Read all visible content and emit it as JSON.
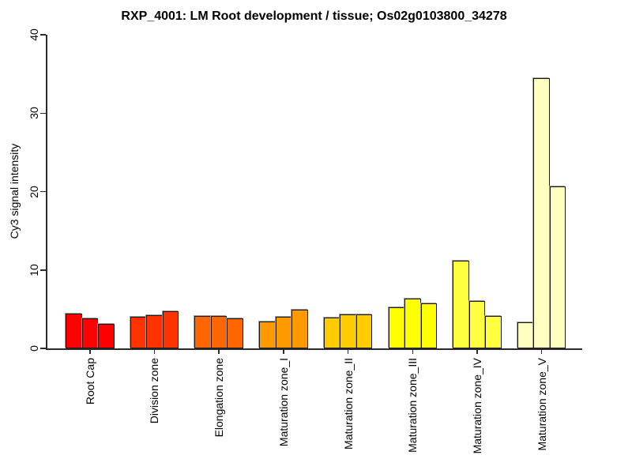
{
  "title": "RXP_4001: LM Root development / tissue; Os02g0103800_34278",
  "chart_data": {
    "type": "bar",
    "title": "RXP_4001: LM Root development / tissue; Os02g0103800_34278",
    "xlabel": "",
    "ylabel": "Cy3 signal intensity",
    "ylim": [
      0,
      40
    ],
    "yticks": [
      0,
      10,
      20,
      30,
      40
    ],
    "grid": false,
    "legend_position": "none",
    "bars_per_category": 3,
    "categories": [
      "Root Cap",
      "Division zone",
      "Elongation zone",
      "Maturation zone_I",
      "Maturation zone_II",
      "Maturation zone_III",
      "Maturation zone_IV",
      "Maturation zone_V"
    ],
    "values": [
      [
        4.4,
        3.8,
        3.1
      ],
      [
        4.0,
        4.2,
        4.7
      ],
      [
        4.1,
        4.1,
        3.8
      ],
      [
        3.4,
        4.0,
        4.9
      ],
      [
        3.9,
        4.3,
        4.3
      ],
      [
        5.2,
        6.3,
        5.7
      ],
      [
        11.2,
        6.0,
        4.1
      ],
      [
        3.3,
        34.5,
        20.7
      ]
    ],
    "bar_colors": [
      "#FF0000",
      "#FF3300",
      "#FF6600",
      "#FF9900",
      "#FFCC00",
      "#FFFF00",
      "#FFFF40",
      "#FFFFBF"
    ]
  },
  "colors": {
    "background": "#FFFFFF",
    "axis": "#2B2B2B",
    "bar_border": "#1A1A1A",
    "bar_shadow": "#9C9C9C",
    "text": "#000000"
  }
}
